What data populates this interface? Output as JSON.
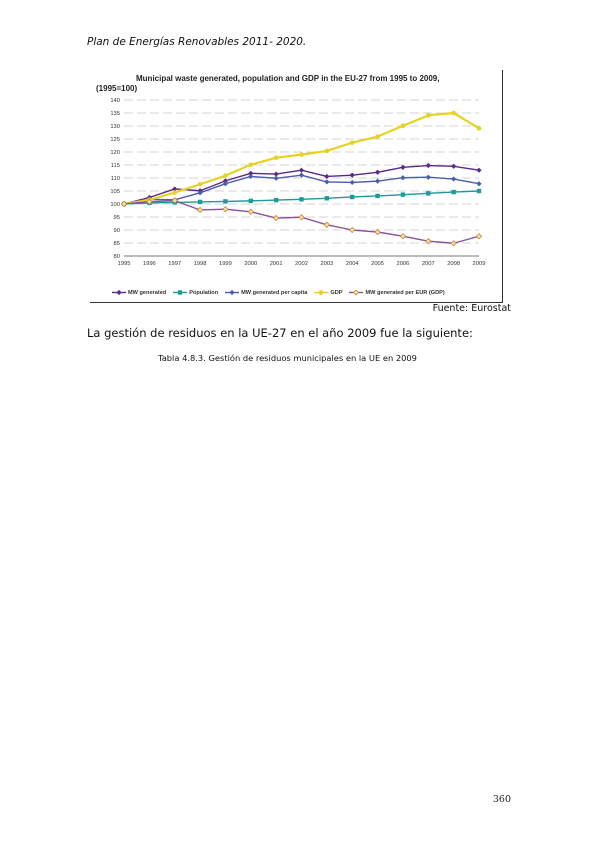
{
  "page": {
    "header": "Plan de Energías Renovables 2011- 2020.",
    "source": "Fuente: Eurostat",
    "paragraph": "La gestión de residuos en la UE-27 en el año 2009 fue la siguiente:",
    "caption": "Tabla 4.8.3. Gestión de residuos municipales en la UE en 2009",
    "page_number": "360"
  },
  "chart_data": {
    "type": "line",
    "title": "Municipal waste generated, population and GDP in the EU-27 from 1995 to 2009,",
    "subtitle": "(1995=100)",
    "x": [
      "1995",
      "1996",
      "1997",
      "1998",
      "1999",
      "2000",
      "2001",
      "2002",
      "2003",
      "2004",
      "2005",
      "2006",
      "2007",
      "2008",
      "2009"
    ],
    "ylim": [
      80,
      140
    ],
    "yticks": [
      80,
      85,
      90,
      95,
      100,
      105,
      110,
      115,
      120,
      125,
      130,
      135,
      140
    ],
    "grid": true,
    "legend_position": "bottom",
    "series": [
      {
        "name": "MW generated",
        "color": "#5b2a86",
        "marker": "diamond",
        "values": [
          100,
          102.5,
          105.8,
          105.1,
          108.9,
          111.8,
          111.5,
          113.0,
          110.6,
          111.1,
          112.2,
          114.1,
          114.8,
          114.5,
          113.0
        ]
      },
      {
        "name": "Population",
        "color": "#1e9a9a",
        "marker": "square",
        "values": [
          100,
          100.4,
          100.6,
          100.8,
          101.0,
          101.2,
          101.5,
          101.8,
          102.2,
          102.7,
          103.1,
          103.6,
          104.1,
          104.6,
          105.0
        ]
      },
      {
        "name": "MW generated per capita",
        "color": "#4b5ea8",
        "marker": "diamond",
        "values": [
          100,
          101.8,
          101.6,
          104.3,
          107.8,
          110.6,
          109.9,
          111.1,
          108.5,
          108.3,
          108.8,
          110.1,
          110.3,
          109.6,
          107.8
        ]
      },
      {
        "name": "GDP",
        "color": "#e6d31f",
        "marker": "circle",
        "values": [
          100,
          101.6,
          104.4,
          107.6,
          110.9,
          115.1,
          117.8,
          119.0,
          120.4,
          123.6,
          125.9,
          130.1,
          134.1,
          135.0,
          129.1
        ]
      },
      {
        "name": "MW generated per EUR (GDP)",
        "color": "#8a4fa0",
        "marker": "diamond-orange",
        "values": [
          100,
          100.9,
          101.3,
          97.7,
          98.0,
          97.0,
          94.6,
          94.9,
          92.0,
          90.0,
          89.2,
          87.6,
          85.7,
          84.9,
          87.6
        ]
      }
    ]
  }
}
